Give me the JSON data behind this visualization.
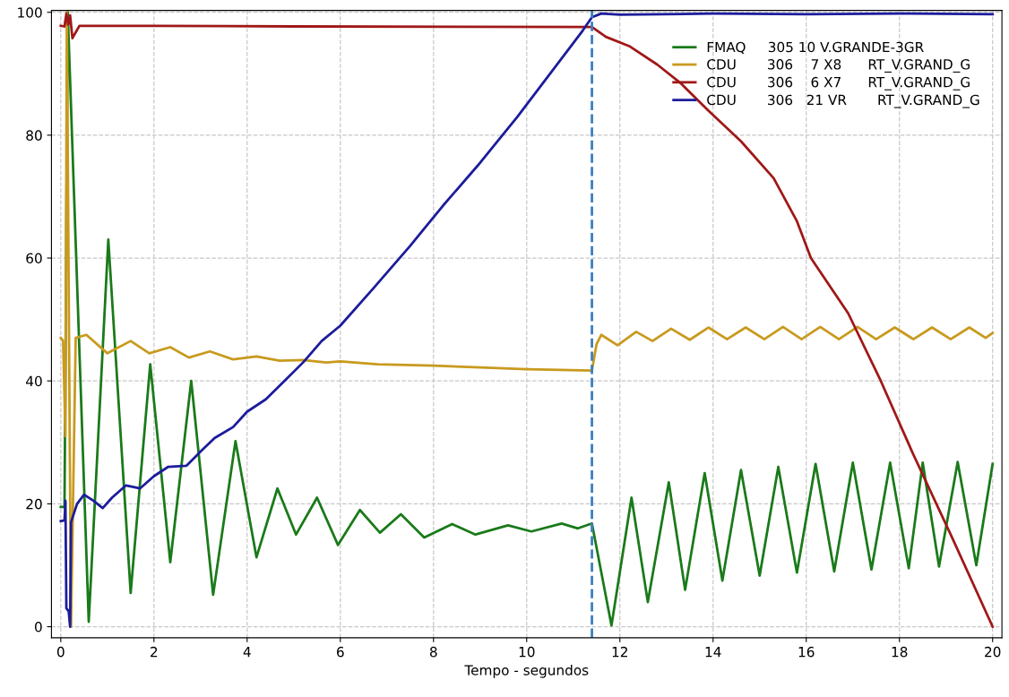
{
  "chart_data": {
    "type": "line",
    "xlabel": "Tempo - segundos",
    "xlim": [
      -0.2,
      20.2
    ],
    "ylim": [
      -1.8,
      100.3
    ],
    "xticks": [
      0,
      2,
      4,
      6,
      8,
      10,
      12,
      14,
      16,
      18,
      20
    ],
    "yticks": [
      0,
      20,
      40,
      60,
      80,
      100
    ],
    "grid": true,
    "legend": "top right",
    "line_style": "solid",
    "marker": "none",
    "ref_lines": [
      {
        "axis": "x",
        "value": 11.4,
        "color": "#3a7fc0",
        "line_style": "dashed"
      }
    ],
    "series": [
      {
        "name": "FMAQ     305 10 V.GRANDE-3GR",
        "color": "#1a7a1a",
        "x": [
          0,
          0.08,
          0.15,
          0.6,
          1.02,
          1.5,
          1.92,
          2.35,
          2.8,
          3.27,
          3.75,
          4.2,
          4.65,
          5.05,
          5.5,
          5.95,
          6.42,
          6.85,
          7.3,
          7.8,
          8.4,
          8.9,
          9.6,
          10.1,
          10.75,
          11.1,
          11.4,
          11.82,
          12.25,
          12.6,
          13.05,
          13.4,
          13.82,
          14.2,
          14.6,
          15.0,
          15.4,
          15.8,
          16.2,
          16.6,
          17.0,
          17.4,
          17.8,
          18.2,
          18.5,
          18.85,
          19.25,
          19.65,
          20
        ],
        "values": [
          19.5,
          19.5,
          100,
          0.8,
          63,
          5.5,
          42.7,
          10.5,
          40,
          5.2,
          30.2,
          11.3,
          22.5,
          15,
          21,
          13.3,
          19,
          15.3,
          18.3,
          14.5,
          16.7,
          15,
          16.5,
          15.5,
          16.8,
          16,
          16.8,
          0.2,
          21,
          4,
          23.5,
          6,
          25,
          7.5,
          25.5,
          8.3,
          26,
          8.8,
          26.5,
          9,
          26.7,
          9.3,
          26.7,
          9.5,
          26.7,
          9.8,
          26.8,
          10,
          26.5
        ]
      },
      {
        "name": "CDU       306    7 X8      RT_V.GRAND_G",
        "color": "#c89a1e",
        "x": [
          0,
          0.05,
          0.1,
          0.13,
          0.22,
          0.32,
          0.55,
          1.0,
          1.5,
          1.9,
          2.35,
          2.75,
          3.2,
          3.7,
          4.2,
          4.7,
          5.2,
          5.7,
          6.0,
          6.8,
          8,
          9,
          10,
          11.4,
          11.5,
          11.6,
          11.95,
          12.35,
          12.7,
          13.1,
          13.5,
          13.9,
          14.3,
          14.7,
          15.1,
          15.5,
          15.9,
          16.3,
          16.7,
          17.1,
          17.5,
          17.9,
          18.3,
          18.7,
          19.1,
          19.5,
          19.85,
          20
        ],
        "values": [
          47,
          46.5,
          31,
          100,
          0,
          47,
          47.5,
          44.5,
          46.5,
          44.5,
          45.5,
          43.8,
          44.8,
          43.5,
          44,
          43.3,
          43.4,
          43,
          43.2,
          42.7,
          42.5,
          42.2,
          41.9,
          41.7,
          46,
          47.5,
          45.8,
          48,
          46.5,
          48.5,
          46.7,
          48.7,
          46.8,
          48.7,
          46.8,
          48.8,
          46.8,
          48.8,
          46.8,
          48.8,
          46.8,
          48.7,
          46.8,
          48.7,
          46.8,
          48.7,
          47,
          47.8
        ]
      },
      {
        "name": "CDU       306    6 X7      RT_V.GRAND_G",
        "color": "#a01818",
        "x": [
          0,
          0.08,
          0.12,
          0.16,
          0.2,
          0.25,
          0.4,
          2,
          5,
          11.4,
          11.7,
          12.2,
          12.8,
          13.3,
          13.9,
          14.6,
          15.3,
          15.8,
          16.1,
          16.9,
          17.6,
          18.3,
          19.1,
          20
        ],
        "values": [
          97.8,
          97.7,
          99.8,
          98,
          99.5,
          95.8,
          97.8,
          97.8,
          97.7,
          97.6,
          96,
          94.5,
          91.5,
          88.5,
          84,
          79,
          73,
          66,
          60,
          51,
          40,
          28,
          15,
          0
        ]
      },
      {
        "name": "CDU       306   21 VR       RT_V.GRAND_G",
        "color": "#1c1c9c",
        "x": [
          0,
          0.08,
          0.1,
          0.12,
          0.17,
          0.2,
          0.22,
          0.35,
          0.5,
          0.7,
          0.9,
          1.1,
          1.4,
          1.7,
          2.0,
          2.3,
          2.7,
          3.0,
          3.3,
          3.7,
          4.0,
          4.4,
          4.8,
          5.2,
          5.6,
          6.0,
          6.7,
          7.5,
          8.2,
          9.0,
          9.8,
          10.5,
          11.2,
          11.4,
          11.6,
          12,
          14,
          16,
          18,
          20
        ],
        "values": [
          17.2,
          17.3,
          20.5,
          3,
          2.5,
          0,
          17,
          20,
          21.5,
          20.5,
          19.3,
          21,
          23,
          22.5,
          24.5,
          26,
          26.2,
          28.5,
          30.7,
          32.5,
          35,
          37,
          40,
          43,
          46.5,
          49,
          55,
          62,
          68.5,
          75.5,
          83,
          90,
          97,
          99.2,
          99.8,
          99.6,
          99.8,
          99.7,
          99.8,
          99.7
        ]
      }
    ]
  }
}
